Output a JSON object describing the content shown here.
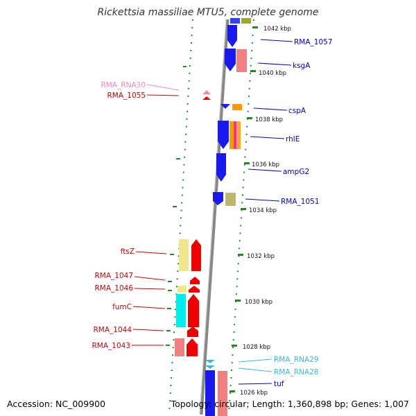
{
  "title": "Rickettsia massiliae MTU5, complete genome",
  "accession": "Accession: NC_009900",
  "topology": "Topology: circular; Length: 1,360,898 bp; Genes: 1,007",
  "colors": {
    "forward_label": "#0000cc",
    "reverse_label": "#cc0000",
    "rna_pink": "#ee88bb",
    "rna_cyan": "#33bbdd",
    "tick": "#228822",
    "backbone": "#888888"
  },
  "ticks": [
    {
      "label": "1042 kbp"
    },
    {
      "label": "1040 kbp"
    },
    {
      "label": "1038 kbp"
    },
    {
      "label": "1036 kbp"
    },
    {
      "label": "1034 kbp"
    },
    {
      "label": "1032 kbp"
    },
    {
      "label": "1030 kbp"
    },
    {
      "label": "1028 kbp"
    },
    {
      "label": "1026 kbp"
    }
  ],
  "genes_right": [
    {
      "label": "RMA_1057"
    },
    {
      "label": "ksgA"
    },
    {
      "label": "cspA"
    },
    {
      "label": "rhlE"
    },
    {
      "label": "ampG2"
    },
    {
      "label": "RMA_1051"
    },
    {
      "label": "RMA_RNA29"
    },
    {
      "label": "RMA_RNA28"
    },
    {
      "label": "tuf"
    }
  ],
  "genes_left": [
    {
      "label": "RMA_RNA30"
    },
    {
      "label": "RMA_1055"
    },
    {
      "label": "ftsZ"
    },
    {
      "label": "RMA_1047"
    },
    {
      "label": "RMA_1046"
    },
    {
      "label": "fumC"
    },
    {
      "label": "RMA_1044"
    },
    {
      "label": "RMA_1043"
    }
  ]
}
